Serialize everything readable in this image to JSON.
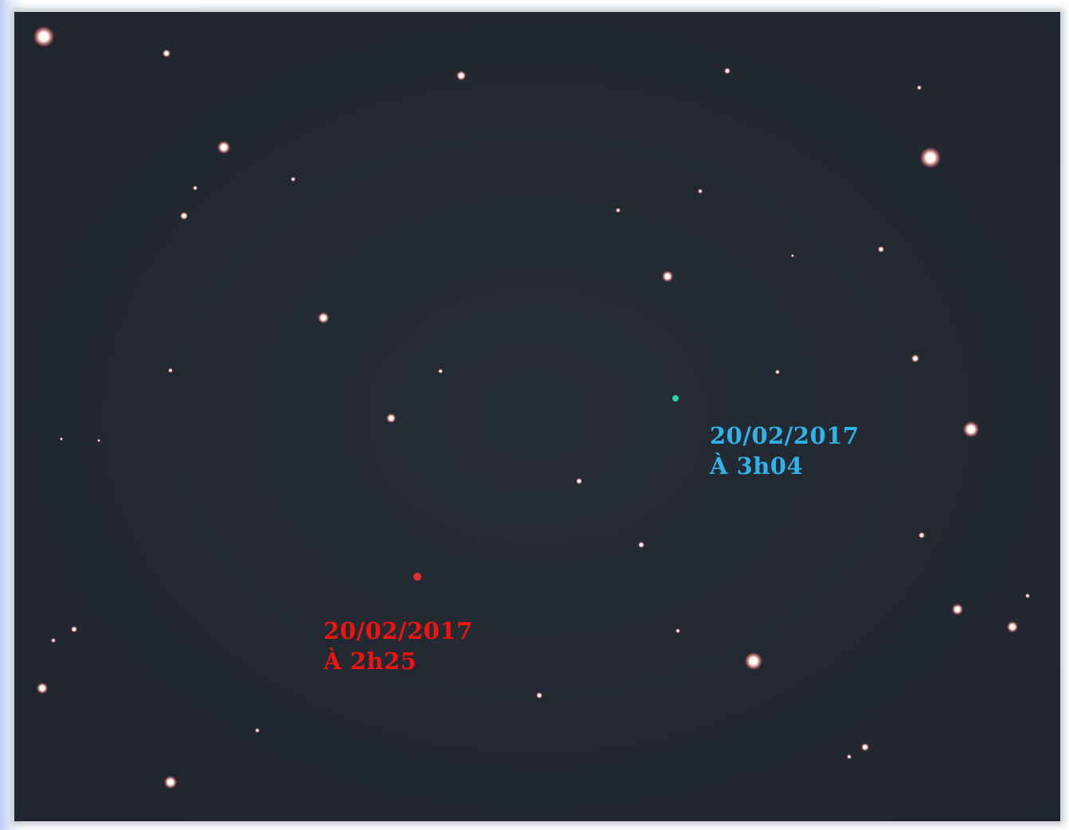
{
  "annotations": [
    {
      "date": "20/02/2017",
      "time": "À 3h04"
    },
    {
      "date": "20/02/2017",
      "time": "À 2h25"
    }
  ]
}
